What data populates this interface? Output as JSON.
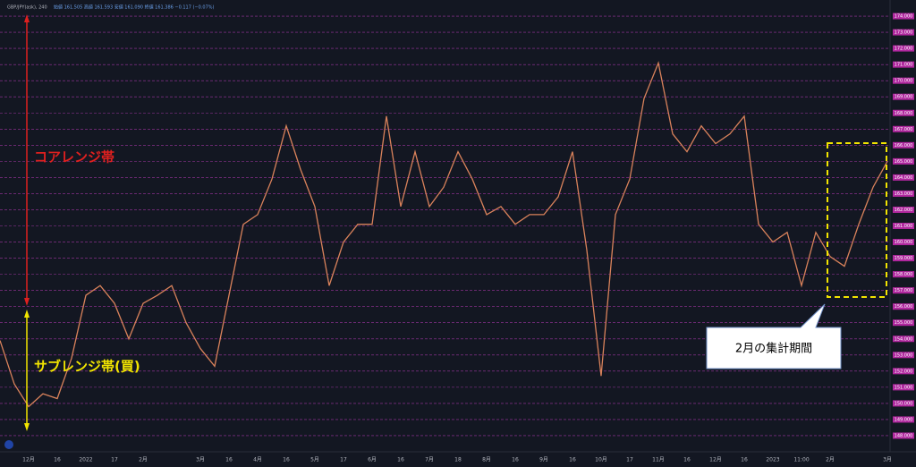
{
  "chart_data": {
    "type": "line",
    "title": "GBP/JPY(ask), 240",
    "subtitle": "始値 161.505  高値 161.593  安値 161.090  終値 161.386  −0.117 (−0.07%)",
    "categories": [
      null,
      null,
      "12月",
      null,
      "16",
      null,
      "2022",
      null,
      "17",
      null,
      "2月",
      null,
      null,
      null,
      "3月",
      null,
      "16",
      null,
      "4月",
      null,
      "16",
      null,
      "5月",
      null,
      "17",
      null,
      "6月",
      null,
      "16",
      null,
      "7月",
      null,
      "18",
      null,
      "8月",
      null,
      "16",
      null,
      "9月",
      null,
      "16",
      null,
      "10月",
      null,
      "17",
      null,
      "11月",
      null,
      "16",
      null,
      "12月",
      null,
      "16",
      null,
      "2023",
      null,
      "11:00",
      null,
      "2月",
      null,
      null,
      null,
      "3月"
    ],
    "series": [
      {
        "name": "GBP/JPY",
        "color": "#d9825b",
        "values": [
          153.9,
          151.2,
          149.8,
          150.6,
          150.3,
          152.8,
          156.7,
          157.3,
          156.2,
          154.0,
          156.2,
          156.7,
          157.3,
          155.0,
          153.4,
          152.3,
          156.7,
          161.1,
          161.7,
          163.9,
          167.2,
          164.5,
          162.2,
          157.3,
          160.0,
          161.1,
          161.1,
          167.8,
          162.2,
          165.6,
          162.2,
          163.4,
          165.6,
          163.9,
          161.7,
          162.2,
          161.1,
          161.7,
          161.7,
          162.8,
          165.6,
          159.5,
          151.7,
          161.7,
          163.9,
          168.9,
          171.1,
          166.7,
          165.6,
          167.2,
          166.1,
          166.7,
          167.8,
          161.1,
          160.0,
          160.6,
          157.3,
          160.6,
          159.1,
          158.5,
          161.1,
          163.4,
          165.0
        ]
      }
    ],
    "ylim": [
      147.5,
      175
    ],
    "yticks": [
      {
        "value": 148,
        "label": "148.000"
      },
      {
        "value": 149,
        "label": "149.000"
      },
      {
        "value": 150,
        "label": "150.000"
      },
      {
        "value": 151,
        "label": "151.000"
      },
      {
        "value": 152,
        "label": "152.000"
      },
      {
        "value": 153,
        "label": "153.000"
      },
      {
        "value": 154,
        "label": "154.000"
      },
      {
        "value": 155,
        "label": "155.000"
      },
      {
        "value": 156,
        "label": "156.000"
      },
      {
        "value": 157,
        "label": "157.000"
      },
      {
        "value": 158,
        "label": "158.000"
      },
      {
        "value": 159,
        "label": "159.000"
      },
      {
        "value": 160,
        "label": "160.000"
      },
      {
        "value": 161,
        "label": "161.000"
      },
      {
        "value": 162,
        "label": "162.000"
      },
      {
        "value": 163,
        "label": "163.000"
      },
      {
        "value": 164,
        "label": "164.000"
      },
      {
        "value": 165,
        "label": "165.000"
      },
      {
        "value": 166,
        "label": "166.000"
      },
      {
        "value": 167,
        "label": "167.000"
      },
      {
        "value": 168,
        "label": "168.000"
      },
      {
        "value": 169,
        "label": "169.000"
      },
      {
        "value": 170,
        "label": "170.000"
      },
      {
        "value": 171,
        "label": "171.000"
      },
      {
        "value": 172,
        "label": "172.000"
      },
      {
        "value": 173,
        "label": "173.000"
      },
      {
        "value": 174,
        "label": "174.000"
      }
    ],
    "grid": true,
    "annotations": [
      "コアレンジ帯",
      "サブレンジ帯(買)",
      "2月の集計期間"
    ]
  }
}
